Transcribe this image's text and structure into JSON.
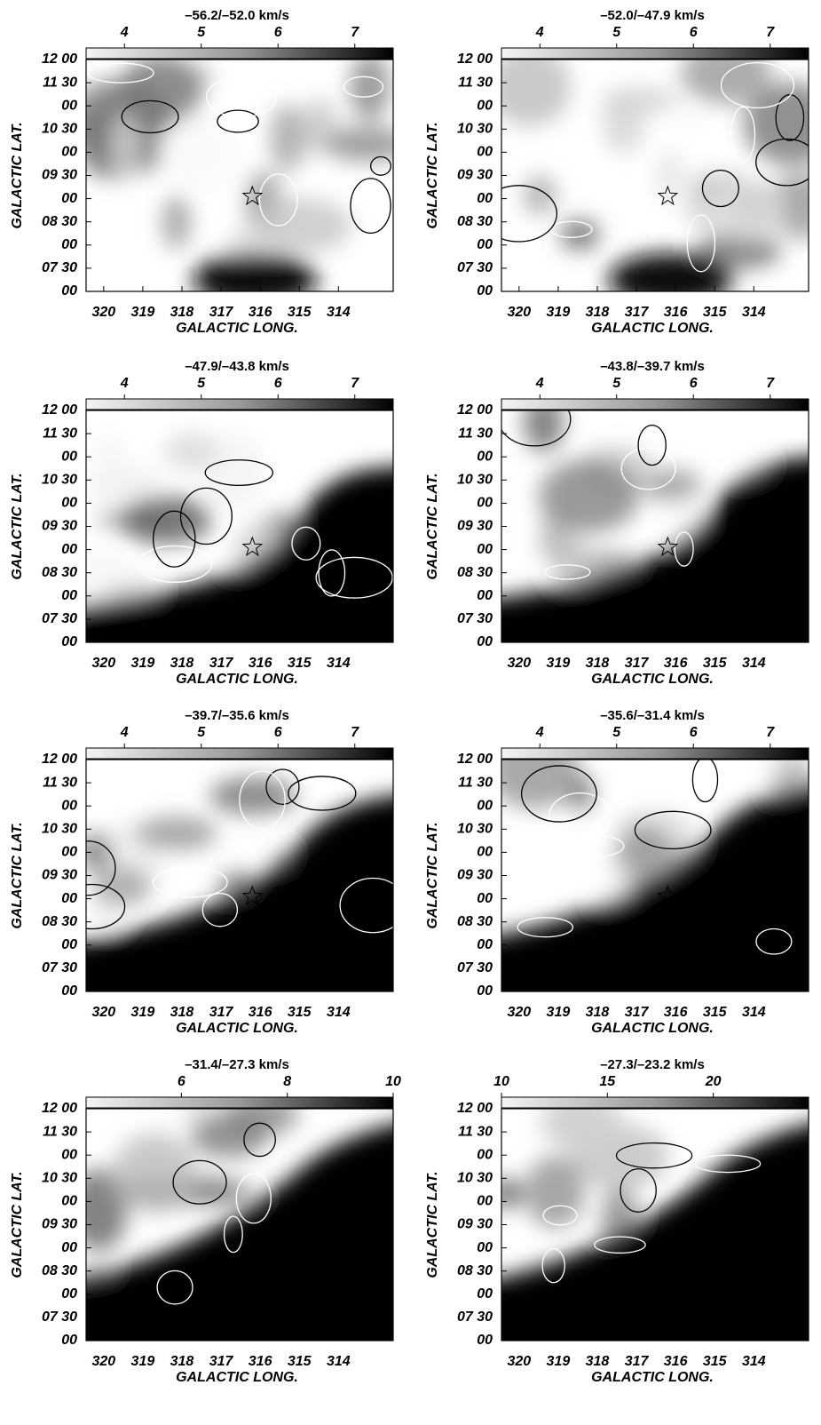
{
  "chart_data": [
    {
      "type": "map",
      "title": "–56.2/–52.0 km/s",
      "clim": [
        3.5,
        7.5
      ],
      "cticks": [
        4,
        5,
        6,
        7
      ],
      "xlim": [
        320.45,
        312.6
      ],
      "xticks": [
        320,
        319,
        318,
        317,
        316,
        315,
        314
      ],
      "ylim": [
        7,
        12
      ],
      "yticks": [
        {
          "value": 7,
          "label": "00"
        },
        {
          "value": 7.5,
          "label": "07 30"
        },
        {
          "value": 8,
          "label": "00"
        },
        {
          "value": 8.5,
          "label": "08 30"
        },
        {
          "value": 9,
          "label": "00"
        },
        {
          "value": 9.5,
          "label": "09 30"
        },
        {
          "value": 10,
          "label": "00"
        },
        {
          "value": 10.5,
          "label": "10 30"
        },
        {
          "value": 11,
          "label": "00"
        },
        {
          "value": 11.5,
          "label": "11 30"
        },
        {
          "value": 12,
          "label": "12 00"
        }
      ],
      "xlabel": "GALACTIC LONG.",
      "ylabel": "GALACTIC LAT."
    },
    {
      "type": "map",
      "title": "–52.0/–47.9 km/s",
      "clim": [
        3.5,
        7.5
      ],
      "cticks": [
        4,
        5,
        6,
        7
      ],
      "xlim": [
        320.45,
        312.6
      ],
      "xticks": [
        320,
        319,
        318,
        317,
        316,
        315,
        314
      ],
      "ylim": [
        7,
        12
      ],
      "yticks": [
        {
          "value": 7,
          "label": "00"
        },
        {
          "value": 7.5,
          "label": "07 30"
        },
        {
          "value": 8,
          "label": "00"
        },
        {
          "value": 8.5,
          "label": "08 30"
        },
        {
          "value": 9,
          "label": "00"
        },
        {
          "value": 9.5,
          "label": "09 30"
        },
        {
          "value": 10,
          "label": "00"
        },
        {
          "value": 10.5,
          "label": "10 30"
        },
        {
          "value": 11,
          "label": "00"
        },
        {
          "value": 11.5,
          "label": "11 30"
        },
        {
          "value": 12,
          "label": "12 00"
        }
      ],
      "xlabel": "GALACTIC LONG.",
      "ylabel": "GALACTIC LAT."
    },
    {
      "type": "map",
      "title": "–47.9/–43.8 km/s",
      "clim": [
        3.5,
        7.5
      ],
      "cticks": [
        4,
        5,
        6,
        7
      ],
      "xlim": [
        320.45,
        312.6
      ],
      "xticks": [
        320,
        319,
        318,
        317,
        316,
        315,
        314
      ],
      "ylim": [
        7,
        12
      ],
      "yticks": [
        {
          "value": 7,
          "label": "00"
        },
        {
          "value": 7.5,
          "label": "07 30"
        },
        {
          "value": 8,
          "label": "00"
        },
        {
          "value": 8.5,
          "label": "08 30"
        },
        {
          "value": 9,
          "label": "00"
        },
        {
          "value": 9.5,
          "label": "09 30"
        },
        {
          "value": 10,
          "label": "00"
        },
        {
          "value": 10.5,
          "label": "10 30"
        },
        {
          "value": 11,
          "label": "00"
        },
        {
          "value": 11.5,
          "label": "11 30"
        },
        {
          "value": 12,
          "label": "12 00"
        }
      ],
      "xlabel": "GALACTIC LONG.",
      "ylabel": "GALACTIC LAT."
    },
    {
      "type": "map",
      "title": "–43.8/–39.7 km/s",
      "clim": [
        3.5,
        7.5
      ],
      "cticks": [
        4,
        5,
        6,
        7
      ],
      "xlim": [
        320.45,
        312.6
      ],
      "xticks": [
        320,
        319,
        318,
        317,
        316,
        315,
        314
      ],
      "ylim": [
        7,
        12
      ],
      "yticks": [
        {
          "value": 7,
          "label": "00"
        },
        {
          "value": 7.5,
          "label": "07 30"
        },
        {
          "value": 8,
          "label": "00"
        },
        {
          "value": 8.5,
          "label": "08 30"
        },
        {
          "value": 9,
          "label": "00"
        },
        {
          "value": 9.5,
          "label": "09 30"
        },
        {
          "value": 10,
          "label": "00"
        },
        {
          "value": 10.5,
          "label": "10 30"
        },
        {
          "value": 11,
          "label": "00"
        },
        {
          "value": 11.5,
          "label": "11 30"
        },
        {
          "value": 12,
          "label": "12 00"
        }
      ],
      "xlabel": "GALACTIC LONG.",
      "ylabel": "GALACTIC LAT."
    },
    {
      "type": "map",
      "title": "–39.7/–35.6 km/s",
      "clim": [
        3.5,
        7.5
      ],
      "cticks": [
        4,
        5,
        6,
        7
      ],
      "xlim": [
        320.45,
        312.6
      ],
      "xticks": [
        320,
        319,
        318,
        317,
        316,
        315,
        314
      ],
      "ylim": [
        7,
        12
      ],
      "yticks": [
        {
          "value": 7,
          "label": "00"
        },
        {
          "value": 7.5,
          "label": "07 30"
        },
        {
          "value": 8,
          "label": "00"
        },
        {
          "value": 8.5,
          "label": "08 30"
        },
        {
          "value": 9,
          "label": "00"
        },
        {
          "value": 9.5,
          "label": "09 30"
        },
        {
          "value": 10,
          "label": "00"
        },
        {
          "value": 10.5,
          "label": "10 30"
        },
        {
          "value": 11,
          "label": "00"
        },
        {
          "value": 11.5,
          "label": "11 30"
        },
        {
          "value": 12,
          "label": "12 00"
        }
      ],
      "xlabel": "GALACTIC LONG.",
      "ylabel": "GALACTIC LAT."
    },
    {
      "type": "map",
      "title": "–35.6/–31.4 km/s",
      "clim": [
        3.5,
        7.5
      ],
      "cticks": [
        4,
        5,
        6,
        7
      ],
      "xlim": [
        320.45,
        312.6
      ],
      "xticks": [
        320,
        319,
        318,
        317,
        316,
        315,
        314
      ],
      "ylim": [
        7,
        12
      ],
      "yticks": [
        {
          "value": 7,
          "label": "00"
        },
        {
          "value": 7.5,
          "label": "07 30"
        },
        {
          "value": 8,
          "label": "00"
        },
        {
          "value": 8.5,
          "label": "08 30"
        },
        {
          "value": 9,
          "label": "00"
        },
        {
          "value": 9.5,
          "label": "09 30"
        },
        {
          "value": 10,
          "label": "00"
        },
        {
          "value": 10.5,
          "label": "10 30"
        },
        {
          "value": 11,
          "label": "00"
        },
        {
          "value": 11.5,
          "label": "11 30"
        },
        {
          "value": 12,
          "label": "12 00"
        }
      ],
      "xlabel": "GALACTIC LONG.",
      "ylabel": "GALACTIC LAT."
    },
    {
      "type": "map",
      "title": "–31.4/–27.3 km/s",
      "clim": [
        4.2,
        10
      ],
      "cticks": [
        6,
        8,
        10
      ],
      "xlim": [
        320.45,
        312.6
      ],
      "xticks": [
        320,
        319,
        318,
        317,
        316,
        315,
        314
      ],
      "ylim": [
        7,
        12
      ],
      "yticks": [
        {
          "value": 7,
          "label": "00"
        },
        {
          "value": 7.5,
          "label": "07 30"
        },
        {
          "value": 8,
          "label": "00"
        },
        {
          "value": 8.5,
          "label": "08 30"
        },
        {
          "value": 9,
          "label": "00"
        },
        {
          "value": 9.5,
          "label": "09 30"
        },
        {
          "value": 10,
          "label": "00"
        },
        {
          "value": 10.5,
          "label": "10 30"
        },
        {
          "value": 11,
          "label": "00"
        },
        {
          "value": 11.5,
          "label": "11 30"
        },
        {
          "value": 12,
          "label": "12 00"
        }
      ],
      "xlabel": "GALACTIC LONG.",
      "ylabel": "GALACTIC LAT."
    },
    {
      "type": "map",
      "title": "–27.3/–23.2 km/s",
      "clim": [
        10,
        24.5
      ],
      "cticks": [
        10,
        15,
        20
      ],
      "xlim": [
        320.45,
        312.6
      ],
      "xticks": [
        320,
        319,
        318,
        317,
        316,
        315,
        314
      ],
      "ylim": [
        7,
        12
      ],
      "yticks": [
        {
          "value": 7,
          "label": "00"
        },
        {
          "value": 7.5,
          "label": "07 30"
        },
        {
          "value": 8,
          "label": "00"
        },
        {
          "value": 8.5,
          "label": "08 30"
        },
        {
          "value": 9,
          "label": "00"
        },
        {
          "value": 9.5,
          "label": "09 30"
        },
        {
          "value": 10,
          "label": "00"
        },
        {
          "value": 10.5,
          "label": "10 30"
        },
        {
          "value": 11,
          "label": "00"
        },
        {
          "value": 11.5,
          "label": "11 30"
        },
        {
          "value": 12,
          "label": "12 00"
        }
      ],
      "xlabel": "GALACTIC LONG.",
      "ylabel": "GALACTIC LAT."
    }
  ]
}
